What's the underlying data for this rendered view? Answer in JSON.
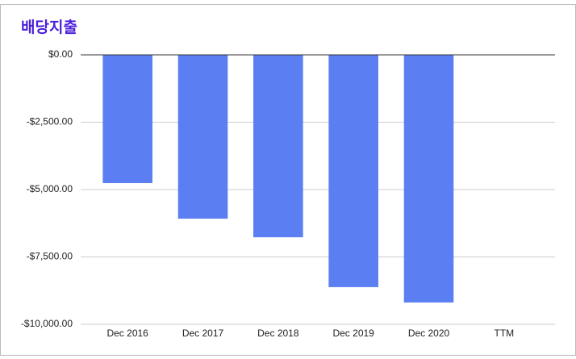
{
  "chart_data": {
    "type": "bar",
    "title": "배당지출",
    "categories": [
      "Dec 2016",
      "Dec 2017",
      "Dec 2018",
      "Dec 2019",
      "Dec 2020",
      "TTM"
    ],
    "values": [
      -4760,
      -6080,
      -6770,
      -8620,
      -9190,
      null
    ],
    "color": "#5b7ff2",
    "ylim": [
      -10000,
      0
    ],
    "yticks": [
      {
        "value": 0,
        "label": "$0.00"
      },
      {
        "value": -2500,
        "label": "-$2,500.00"
      },
      {
        "value": -5000,
        "label": "-$5,000.00"
      },
      {
        "value": -7500,
        "label": "-$7,500.00"
      },
      {
        "value": -10000,
        "label": "-$10,000.00"
      }
    ],
    "grid": true
  }
}
